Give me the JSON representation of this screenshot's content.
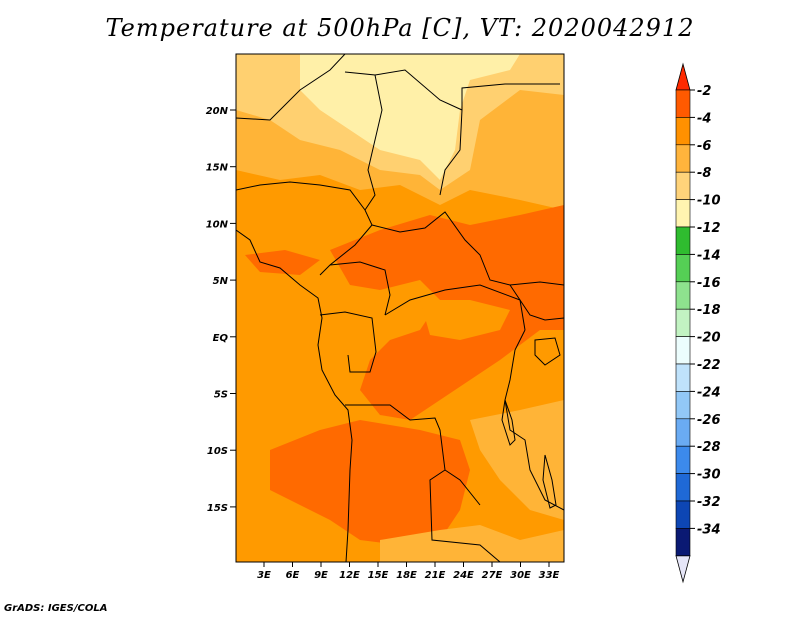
{
  "title": "Temperature at 500hPa [C], VT: 2020042912",
  "credit": "GrADS: IGES/COLA",
  "map": {
    "lat_labels": [
      "20N",
      "15N",
      "10N",
      "5N",
      "EQ",
      "5S",
      "10S",
      "15S"
    ],
    "lon_labels": [
      "3E",
      "6E",
      "9E",
      "12E",
      "15E",
      "18E",
      "21E",
      "24E",
      "27E",
      "30E",
      "33E"
    ]
  },
  "colorbar": {
    "labels": [
      "-2",
      "-4",
      "-6",
      "-8",
      "-10",
      "-12",
      "-14",
      "-16",
      "-18",
      "-20",
      "-22",
      "-24",
      "-26",
      "-28",
      "-30",
      "-32",
      "-34"
    ],
    "colors": [
      "#ff5a00",
      "#ff9100",
      "#ffb43c",
      "#ffd37a",
      "#fff4b0",
      "#2fbc2f",
      "#55cf55",
      "#8ee28e",
      "#c2f3c2",
      "#ecfdfd",
      "#bfe2fb",
      "#92c8f7",
      "#6aabf3",
      "#3c8aec",
      "#1f69d6",
      "#0d46b4",
      "#0a1973"
    ],
    "top_arrow_color": "#ff2a00",
    "bottom_arrow_color": "#e6e6f8"
  },
  "field_colors": {
    "warmest": "#ff6a00",
    "warm": "#ff9a00",
    "mid": "#ffb437",
    "cool": "#ffd070",
    "coolest": "#fff0a8"
  }
}
